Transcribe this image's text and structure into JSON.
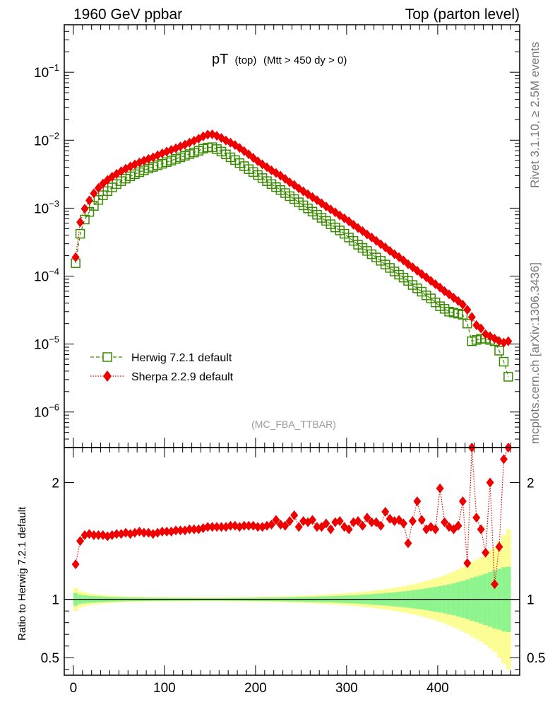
{
  "header": {
    "left": "1960 GeV ppbar",
    "right": "Top (parton level)"
  },
  "side_text": {
    "rivet": "Rivet 3.1.10, ≥ 2.5M events",
    "mcplots": "mcplots.cern.ch [arXiv:1306.3436]"
  },
  "plot": {
    "title_main": "pT",
    "title_sub": "(top)",
    "title_cut": "(Mtt > 450 dy > 0)",
    "watermark": "(MC_FBA_TTBAR)",
    "ratio_ylabel": "Ratio to Herwig 7.2.1 default"
  },
  "colors": {
    "herwig": "#3a8a00",
    "sherpa": "#ee0000",
    "band_stat": "#8ef58e",
    "band_syst": "#fdfd96"
  },
  "chart_data": [
    {
      "type": "scatter",
      "panel": "main",
      "y_scale": "log",
      "xlim": [
        -10,
        490
      ],
      "ylim": [
        3e-07,
        0.5
      ],
      "y_ticks": [
        "10^-6",
        "10^-5",
        "10^-4",
        "10^-3",
        "10^-2",
        "10^-1"
      ],
      "legend": [
        "Herwig 7.2.1 default",
        "Sherpa 2.2.9 default"
      ],
      "legend_position": "bottom-left",
      "x": [
        2.5,
        7.5,
        12.5,
        17.5,
        22.5,
        27.5,
        32.5,
        37.5,
        42.5,
        47.5,
        52.5,
        57.5,
        62.5,
        67.5,
        72.5,
        77.5,
        82.5,
        87.5,
        92.5,
        97.5,
        102.5,
        107.5,
        112.5,
        117.5,
        122.5,
        127.5,
        132.5,
        137.5,
        142.5,
        147.5,
        152.5,
        157.5,
        162.5,
        167.5,
        172.5,
        177.5,
        182.5,
        187.5,
        192.5,
        197.5,
        202.5,
        207.5,
        212.5,
        217.5,
        222.5,
        227.5,
        232.5,
        237.5,
        242.5,
        247.5,
        252.5,
        257.5,
        262.5,
        267.5,
        272.5,
        277.5,
        282.5,
        287.5,
        292.5,
        297.5,
        302.5,
        307.5,
        312.5,
        317.5,
        322.5,
        327.5,
        332.5,
        337.5,
        342.5,
        347.5,
        352.5,
        357.5,
        362.5,
        367.5,
        372.5,
        377.5,
        382.5,
        387.5,
        392.5,
        397.5,
        402.5,
        407.5,
        412.5,
        417.5,
        422.5,
        427.5,
        432.5,
        437.5,
        442.5,
        447.5,
        452.5,
        457.5,
        462.5,
        467.5,
        472.5,
        477.5
      ],
      "series": [
        {
          "name": "Herwig 7.2.1 default",
          "marker": "open-square",
          "line": "dashed",
          "values": [
            0.000155,
            0.00042,
            0.00068,
            0.00088,
            0.00108,
            0.00132,
            0.00155,
            0.00178,
            0.00202,
            0.00226,
            0.0025,
            0.00272,
            0.00294,
            0.00316,
            0.00338,
            0.0036,
            0.00383,
            0.00405,
            0.00428,
            0.0045,
            0.00475,
            0.00502,
            0.0053,
            0.0056,
            0.00592,
            0.00625,
            0.0066,
            0.007,
            0.0075,
            0.0078,
            0.0079,
            0.0074,
            0.0068,
            0.0062,
            0.0056,
            0.0051,
            0.0046,
            0.00415,
            0.00375,
            0.0034,
            0.00307,
            0.00277,
            0.0025,
            0.00226,
            0.00204,
            0.00185,
            0.00167,
            0.0015,
            0.00136,
            0.00122,
            0.0011,
            0.00099,
            0.00089,
            0.0008,
            0.00072,
            0.00065,
            0.00058,
            0.00052,
            0.00047,
            0.00042,
            0.00037,
            0.00033,
            0.00029,
            0.00026,
            0.000235,
            0.00021,
            0.000188,
            0.000168,
            0.000148,
            0.000132,
            0.000117,
            0.000105,
            9.5e-05,
            8.5e-05,
            7.4e-05,
            6.6e-05,
            5.9e-05,
            5.2e-05,
            4.7e-05,
            4.1e-05,
            3.6e-05,
            3.3e-05,
            3e-05,
            2.9e-05,
            2.8e-05,
            2.7e-05,
            2e-05,
            1.1e-05,
            1.15e-05,
            1.2e-05,
            1.2e-05,
            1.15e-05,
            1.1e-05,
            8e-06,
            5.5e-06,
            3.3e-06
          ]
        },
        {
          "name": "Sherpa 2.2.9 default",
          "marker": "filled-diamond",
          "line": "dotted",
          "values": [
            0.00019,
            0.00062,
            0.00098,
            0.0013,
            0.00165,
            0.00198,
            0.0023,
            0.0026,
            0.0029,
            0.0032,
            0.0035,
            0.0038,
            0.0041,
            0.0044,
            0.0047,
            0.005,
            0.0053,
            0.0056,
            0.006,
            0.0064,
            0.0068,
            0.0072,
            0.0076,
            0.0081,
            0.0086,
            0.0092,
            0.0098,
            0.0105,
            0.0114,
            0.0121,
            0.0122,
            0.0116,
            0.0108,
            0.0099,
            0.0092,
            0.0085,
            0.0077,
            0.0069,
            0.0062,
            0.0055,
            0.0049,
            0.0044,
            0.004,
            0.0036,
            0.0033,
            0.003,
            0.0027,
            0.0024,
            0.0022,
            0.00195,
            0.00177,
            0.0016,
            0.00145,
            0.00131,
            0.00118,
            0.00106,
            0.00096,
            0.00087,
            0.00078,
            0.00071,
            0.00064,
            0.00057,
            0.00051,
            0.00046,
            0.00041,
            0.00037,
            0.00033,
            0.000295,
            0.000265,
            0.000235,
            0.00021,
            0.00019,
            0.00017,
            0.00015,
            0.000135,
            0.00012,
            0.000107,
            9.6e-05,
            8.5e-05,
            7.6e-05,
            6.8e-05,
            6e-05,
            5.4e-05,
            4.8e-05,
            4.3e-05,
            3.8e-05,
            3.2e-05,
            2.5e-05,
            1.9e-05,
            1.7e-05,
            1.4e-05,
            1.3e-05,
            1.2e-05,
            1.1e-05,
            1.05e-05,
            1.1e-05
          ]
        }
      ]
    },
    {
      "type": "scatter",
      "panel": "ratio",
      "xlim": [
        -10,
        490
      ],
      "ylim": [
        0.35,
        2.3
      ],
      "x_ticks": [
        0,
        100,
        200,
        300,
        400
      ],
      "y_ticks": [
        0.5,
        1,
        2
      ],
      "ylabel": "Ratio to Herwig 7.2.1 default",
      "x": [
        2.5,
        7.5,
        12.5,
        17.5,
        22.5,
        27.5,
        32.5,
        37.5,
        42.5,
        47.5,
        52.5,
        57.5,
        62.5,
        67.5,
        72.5,
        77.5,
        82.5,
        87.5,
        92.5,
        97.5,
        102.5,
        107.5,
        112.5,
        117.5,
        122.5,
        127.5,
        132.5,
        137.5,
        142.5,
        147.5,
        152.5,
        157.5,
        162.5,
        167.5,
        172.5,
        177.5,
        182.5,
        187.5,
        192.5,
        197.5,
        202.5,
        207.5,
        212.5,
        217.5,
        222.5,
        227.5,
        232.5,
        237.5,
        242.5,
        247.5,
        252.5,
        257.5,
        262.5,
        267.5,
        272.5,
        277.5,
        282.5,
        287.5,
        292.5,
        297.5,
        302.5,
        307.5,
        312.5,
        317.5,
        322.5,
        327.5,
        332.5,
        337.5,
        342.5,
        347.5,
        352.5,
        357.5,
        362.5,
        367.5,
        372.5,
        377.5,
        382.5,
        387.5,
        392.5,
        397.5,
        402.5,
        407.5,
        412.5,
        417.5,
        422.5,
        427.5,
        432.5,
        437.5,
        442.5,
        447.5,
        452.5,
        457.5,
        462.5,
        467.5,
        472.5,
        477.5
      ],
      "series": [
        {
          "name": "Sherpa 2.2.9 default",
          "values": [
            1.3,
            1.5,
            1.55,
            1.56,
            1.55,
            1.55,
            1.55,
            1.54,
            1.55,
            1.56,
            1.56,
            1.57,
            1.56,
            1.57,
            1.58,
            1.57,
            1.57,
            1.56,
            1.57,
            1.58,
            1.58,
            1.58,
            1.59,
            1.59,
            1.59,
            1.6,
            1.6,
            1.6,
            1.61,
            1.62,
            1.62,
            1.62,
            1.62,
            1.62,
            1.63,
            1.63,
            1.62,
            1.63,
            1.63,
            1.63,
            1.62,
            1.62,
            1.63,
            1.64,
            1.68,
            1.64,
            1.63,
            1.67,
            1.72,
            1.62,
            1.67,
            1.66,
            1.68,
            1.62,
            1.62,
            1.65,
            1.6,
            1.66,
            1.67,
            1.62,
            1.6,
            1.66,
            1.67,
            1.63,
            1.7,
            1.66,
            1.66,
            1.63,
            1.75,
            1.69,
            1.67,
            1.68,
            1.65,
            1.48,
            1.67,
            1.84,
            1.68,
            1.6,
            1.62,
            1.6,
            1.95,
            1.66,
            1.62,
            1.6,
            1.63,
            1.84,
            1.31,
            2.3,
            1.7,
            1.6,
            1.4,
            2.0,
            1.13,
            1.45,
            2.2,
            2.3
          ]
        },
        {
          "name": "Herwig 7.2.1 default",
          "values": [
            1.0
          ]
        }
      ],
      "bands": {
        "stat_half_width": [
          0.055,
          0.04,
          0.035,
          0.03,
          0.028,
          0.026,
          0.024,
          0.022,
          0.02,
          0.019,
          0.018,
          0.017,
          0.016,
          0.015,
          0.015,
          0.014,
          0.014,
          0.013,
          0.013,
          0.013,
          0.013,
          0.012,
          0.012,
          0.012,
          0.012,
          0.012,
          0.012,
          0.011,
          0.011,
          0.011,
          0.011,
          0.011,
          0.011,
          0.011,
          0.012,
          0.012,
          0.012,
          0.013,
          0.013,
          0.014,
          0.014,
          0.015,
          0.015,
          0.016,
          0.016,
          0.017,
          0.018,
          0.018,
          0.019,
          0.02,
          0.021,
          0.022,
          0.023,
          0.024,
          0.025,
          0.026,
          0.027,
          0.029,
          0.03,
          0.032,
          0.034,
          0.035,
          0.037,
          0.04,
          0.042,
          0.045,
          0.048,
          0.05,
          0.053,
          0.057,
          0.06,
          0.064,
          0.068,
          0.072,
          0.077,
          0.082,
          0.087,
          0.093,
          0.1,
          0.106,
          0.113,
          0.12,
          0.128,
          0.137,
          0.147,
          0.158,
          0.17,
          0.183,
          0.195,
          0.207,
          0.22,
          0.235,
          0.25,
          0.26,
          0.275,
          0.28
        ],
        "syst_half_width": [
          0.1,
          0.07,
          0.06,
          0.05,
          0.045,
          0.04,
          0.037,
          0.034,
          0.031,
          0.029,
          0.027,
          0.025,
          0.024,
          0.023,
          0.022,
          0.021,
          0.02,
          0.02,
          0.019,
          0.019,
          0.019,
          0.018,
          0.018,
          0.018,
          0.018,
          0.018,
          0.018,
          0.017,
          0.017,
          0.017,
          0.017,
          0.017,
          0.017,
          0.018,
          0.018,
          0.018,
          0.019,
          0.019,
          0.02,
          0.021,
          0.021,
          0.022,
          0.023,
          0.024,
          0.025,
          0.026,
          0.027,
          0.028,
          0.029,
          0.031,
          0.032,
          0.034,
          0.035,
          0.037,
          0.039,
          0.041,
          0.043,
          0.046,
          0.048,
          0.051,
          0.054,
          0.057,
          0.06,
          0.064,
          0.068,
          0.072,
          0.077,
          0.082,
          0.087,
          0.093,
          0.099,
          0.106,
          0.113,
          0.12,
          0.128,
          0.137,
          0.147,
          0.157,
          0.168,
          0.18,
          0.193,
          0.207,
          0.222,
          0.238,
          0.256,
          0.275,
          0.295,
          0.32,
          0.34,
          0.36,
          0.39,
          0.42,
          0.45,
          0.5,
          0.55,
          0.6
        ]
      }
    }
  ]
}
